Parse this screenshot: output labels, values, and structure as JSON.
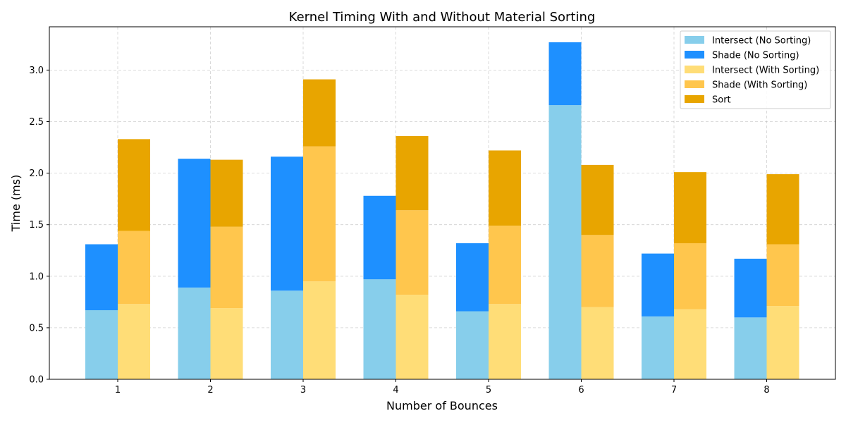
{
  "chart_data": {
    "type": "bar",
    "stacked": true,
    "grouped": true,
    "title": "Kernel Timing With and Without Material Sorting",
    "xlabel": "Number of Bounces",
    "ylabel": "Time (ms)",
    "categories": [
      "1",
      "2",
      "3",
      "4",
      "5",
      "6",
      "7",
      "8"
    ],
    "ylim": [
      0,
      3.42
    ],
    "yticks": [
      "0.0",
      "0.5",
      "1.0",
      "1.5",
      "2.0",
      "2.5",
      "3.0"
    ],
    "grid": true,
    "legend_position": "top-right",
    "groups": [
      {
        "name": "No Sorting",
        "series": [
          {
            "name": "Intersect (No Sorting)",
            "color": "#87CEEB",
            "values": [
              0.67,
              0.89,
              0.86,
              0.97,
              0.66,
              2.66,
              0.61,
              0.6
            ]
          },
          {
            "name": "Shade (No Sorting)",
            "color": "#1E90FF",
            "values": [
              0.64,
              1.25,
              1.3,
              0.81,
              0.66,
              0.61,
              0.61,
              0.57
            ]
          }
        ]
      },
      {
        "name": "With Sorting",
        "series": [
          {
            "name": "Intersect (With Sorting)",
            "color": "#FFDD77",
            "values": [
              0.73,
              0.69,
              0.95,
              0.82,
              0.73,
              0.7,
              0.68,
              0.71
            ]
          },
          {
            "name": "Shade (With Sorting)",
            "color": "#FFC64D",
            "values": [
              0.71,
              0.79,
              1.31,
              0.82,
              0.76,
              0.7,
              0.64,
              0.6
            ]
          },
          {
            "name": "Sort",
            "color": "#E8A500",
            "values": [
              0.89,
              0.65,
              0.65,
              0.72,
              0.73,
              0.68,
              0.69,
              0.68
            ]
          }
        ]
      }
    ]
  }
}
